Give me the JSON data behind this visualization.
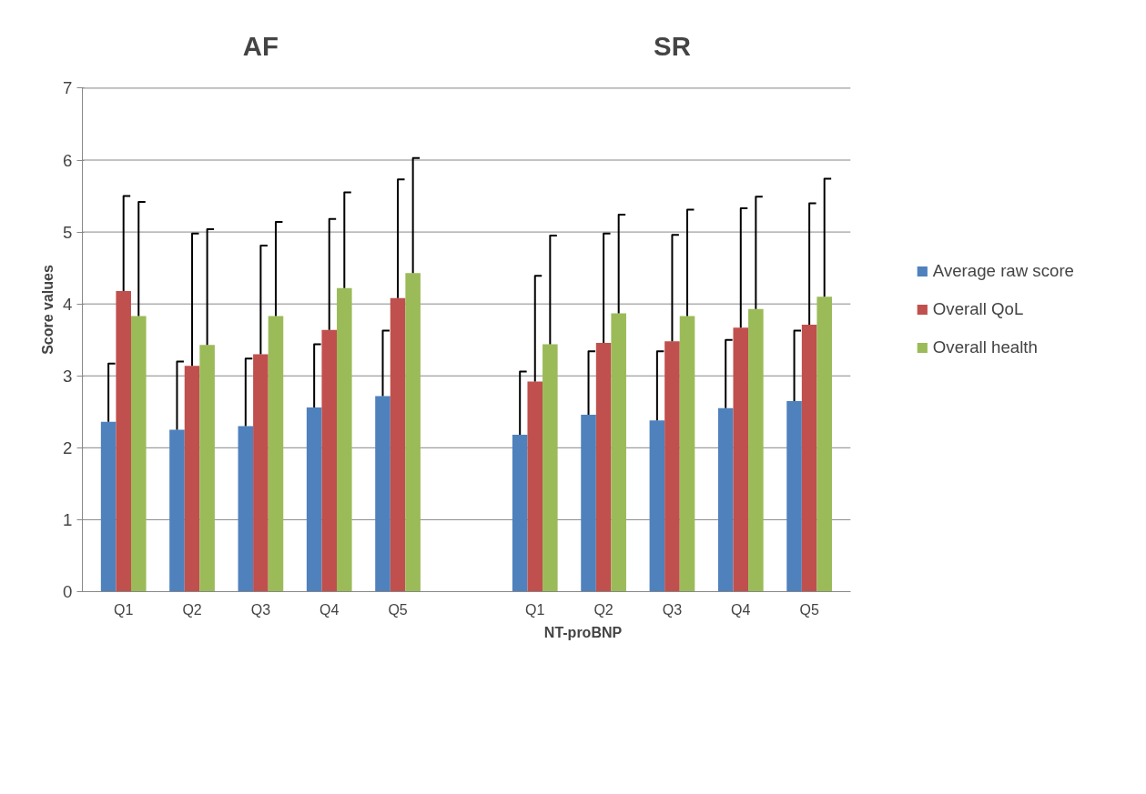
{
  "chart_data": {
    "type": "bar",
    "xlabel": "NT-proBNP",
    "ylabel": "Score values",
    "annotations": [
      "AF",
      "SR"
    ],
    "categories": [
      "Q1",
      "Q2",
      "Q3",
      "Q4",
      "Q5",
      null,
      "Q1",
      "Q2",
      "Q3",
      "Q4",
      "Q5"
    ],
    "series": [
      {
        "name": "Average raw score",
        "color": "#4f81bd",
        "values": [
          2.36,
          2.25,
          2.3,
          2.56,
          2.72,
          null,
          2.18,
          2.46,
          2.38,
          2.55,
          2.65
        ],
        "errors": [
          [
            2.36,
            3.17
          ],
          [
            2.25,
            3.2
          ],
          [
            2.3,
            3.24
          ],
          [
            2.56,
            3.44
          ],
          [
            2.72,
            3.63
          ],
          null,
          [
            2.18,
            3.06
          ],
          [
            2.46,
            3.34
          ],
          [
            2.38,
            3.34
          ],
          [
            2.55,
            3.5
          ],
          [
            2.65,
            3.63
          ]
        ]
      },
      {
        "name": "Overall QoL",
        "color": "#c0504d",
        "values": [
          4.18,
          3.14,
          3.3,
          3.64,
          4.08,
          null,
          2.92,
          3.46,
          3.48,
          3.67,
          3.71
        ],
        "errors": [
          [
            4.18,
            5.5
          ],
          [
            3.14,
            4.98
          ],
          [
            3.3,
            4.81
          ],
          [
            3.64,
            5.18
          ],
          [
            4.08,
            5.73
          ],
          null,
          [
            2.92,
            4.39
          ],
          [
            3.46,
            4.98
          ],
          [
            3.48,
            4.96
          ],
          [
            3.67,
            5.33
          ],
          [
            3.71,
            5.4
          ]
        ]
      },
      {
        "name": "Overall health",
        "color": "#9bbb59",
        "values": [
          3.83,
          3.43,
          3.83,
          4.22,
          4.43,
          null,
          3.44,
          3.87,
          3.83,
          3.93,
          4.1
        ],
        "errors": [
          [
            3.83,
            5.42
          ],
          [
            3.43,
            5.04
          ],
          [
            3.83,
            5.14
          ],
          [
            4.22,
            5.55
          ],
          [
            4.43,
            6.03
          ],
          null,
          [
            3.44,
            4.95
          ],
          [
            3.87,
            5.24
          ],
          [
            3.83,
            5.31
          ],
          [
            3.93,
            5.49
          ],
          [
            4.1,
            5.74
          ]
        ]
      }
    ],
    "ylim": [
      0,
      7
    ],
    "yticks": [
      0,
      1,
      2,
      3,
      4,
      5,
      6,
      7
    ],
    "grid": "y",
    "legend": "right"
  }
}
